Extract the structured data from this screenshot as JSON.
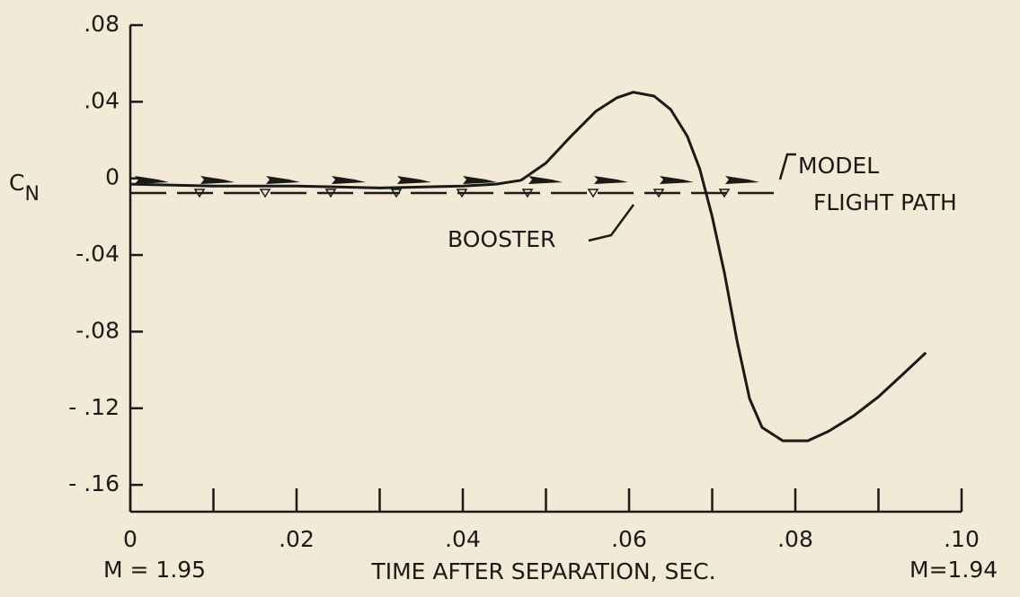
{
  "chart_data": {
    "type": "line",
    "y_label": "C",
    "y_label_sub": "N",
    "x_label": "TIME AFTER SEPARATION, SEC.",
    "annotations": {
      "model": "MODEL",
      "flight_path": "FLIGHT PATH",
      "booster": "BOOSTER",
      "mach_start": "M = 1.95",
      "mach_end": "M=1.94"
    },
    "x": [
      0,
      0.01,
      0.02,
      0.03,
      0.04,
      0.044,
      0.047,
      0.05,
      0.053,
      0.056,
      0.0585,
      0.0605,
      0.063,
      0.065,
      0.067,
      0.0685,
      0.07,
      0.0715,
      0.073,
      0.0745,
      0.076,
      0.0785,
      0.0815,
      0.084,
      0.087,
      0.09,
      0.093,
      0.0957
    ],
    "values": [
      -0.003,
      -0.004,
      -0.004,
      -0.005,
      -0.004,
      -0.003,
      -0.001,
      0.008,
      0.022,
      0.035,
      0.042,
      0.045,
      0.043,
      0.036,
      0.022,
      0.005,
      -0.02,
      -0.05,
      -0.085,
      -0.115,
      -0.13,
      -0.137,
      -0.137,
      -0.132,
      -0.124,
      -0.114,
      -0.102,
      -0.091
    ],
    "color": "#1c1a17",
    "xlim": [
      0,
      0.1
    ],
    "xticks": [
      0,
      {
        "value": 0.02,
        "label": ".02"
      },
      {
        "value": 0.04,
        "label": ".04"
      },
      {
        "value": 0.06,
        "label": ".06"
      },
      {
        "value": 0.08,
        "label": ".08"
      },
      {
        "value": 0.1,
        "label": ".10"
      }
    ],
    "xminorticks": [
      0.01,
      0.03,
      0.05,
      0.07,
      0.09
    ],
    "ylim": [
      -0.174,
      0.08
    ],
    "yticks": [
      {
        "value": 0.08,
        "label": ".08"
      },
      {
        "value": 0.04,
        "label": ".04"
      },
      0,
      {
        "value": -0.04,
        "label": "-.04"
      },
      {
        "value": -0.08,
        "label": "-.08"
      },
      {
        "value": -0.12,
        "label": "- .12"
      },
      {
        "value": -0.16,
        "label": "- .16"
      }
    ]
  }
}
